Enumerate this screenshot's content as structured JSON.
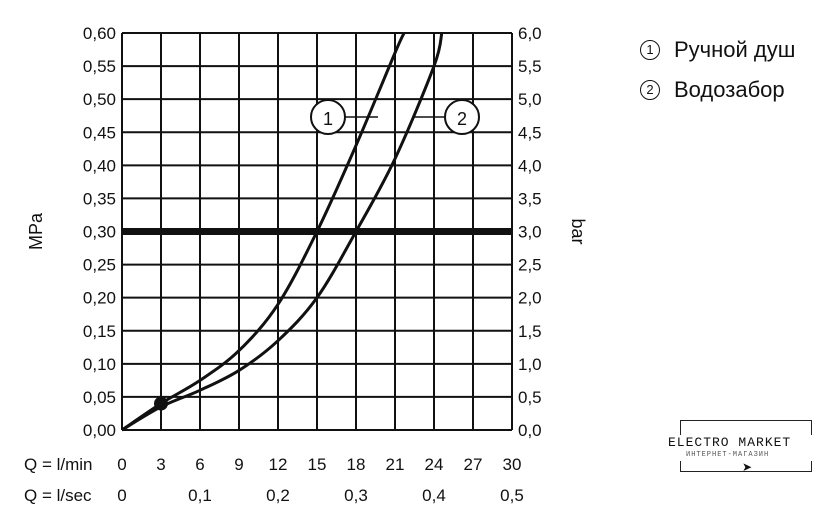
{
  "chart_data": {
    "type": "line",
    "y_left_label": "MPa",
    "y_right_label": "bar",
    "y_left_ticks": [
      "0,00",
      "0,05",
      "0,10",
      "0,15",
      "0,20",
      "0,25",
      "0,30",
      "0,35",
      "0,40",
      "0,45",
      "0,50",
      "0,55",
      "0,60"
    ],
    "y_right_ticks": [
      "0,0",
      "0,5",
      "1,0",
      "1,5",
      "2,0",
      "2,5",
      "3,0",
      "3,5",
      "4,0",
      "4,5",
      "5,0",
      "5,5",
      "6,0"
    ],
    "x_lmin_label": "Q = l/min",
    "x_lmin_ticks": [
      "0",
      "3",
      "6",
      "9",
      "12",
      "15",
      "18",
      "21",
      "24",
      "27",
      "30"
    ],
    "x_lsec_label": "Q = l/sec",
    "x_lsec_ticks": [
      {
        "label": "0",
        "value": 0
      },
      {
        "label": "0,1",
        "value": 0.1
      },
      {
        "label": "0,2",
        "value": 0.2
      },
      {
        "label": "0,3",
        "value": 0.3
      },
      {
        "label": "0,4",
        "value": 0.4
      },
      {
        "label": "0,5",
        "value": 0.5
      }
    ],
    "xlim": [
      0,
      30
    ],
    "ylim": [
      0,
      0.6
    ],
    "grid": true,
    "reference_line": {
      "y": 0.3
    },
    "marker_point": {
      "x": 3,
      "y": 0.04
    },
    "series": [
      {
        "name": "1",
        "label": "Ручной душ",
        "x": [
          0,
          3,
          6,
          9,
          12,
          15,
          18,
          21,
          21.7
        ],
        "y": [
          0,
          0.04,
          0.075,
          0.12,
          0.19,
          0.3,
          0.43,
          0.57,
          0.6
        ]
      },
      {
        "name": "2",
        "label": "Водозабор",
        "x": [
          0,
          3,
          6,
          9,
          12,
          15,
          18,
          21,
          24,
          24.6
        ],
        "y": [
          0,
          0.035,
          0.06,
          0.09,
          0.135,
          0.2,
          0.3,
          0.41,
          0.55,
          0.6
        ]
      }
    ],
    "dashed_markers": [
      {
        "x": 15,
        "y": 0.3
      },
      {
        "x": 18,
        "y": 0.3
      }
    ],
    "callout_labels": [
      "1",
      "2"
    ]
  },
  "legend": {
    "items": [
      {
        "num": "①",
        "label": "Ручной душ"
      },
      {
        "num": "②",
        "label": "Водозабор"
      }
    ]
  },
  "watermark": {
    "title": "ELECTRO MARKET",
    "subtitle": "ИНТЕРНЕТ-МАГАЗИН"
  }
}
